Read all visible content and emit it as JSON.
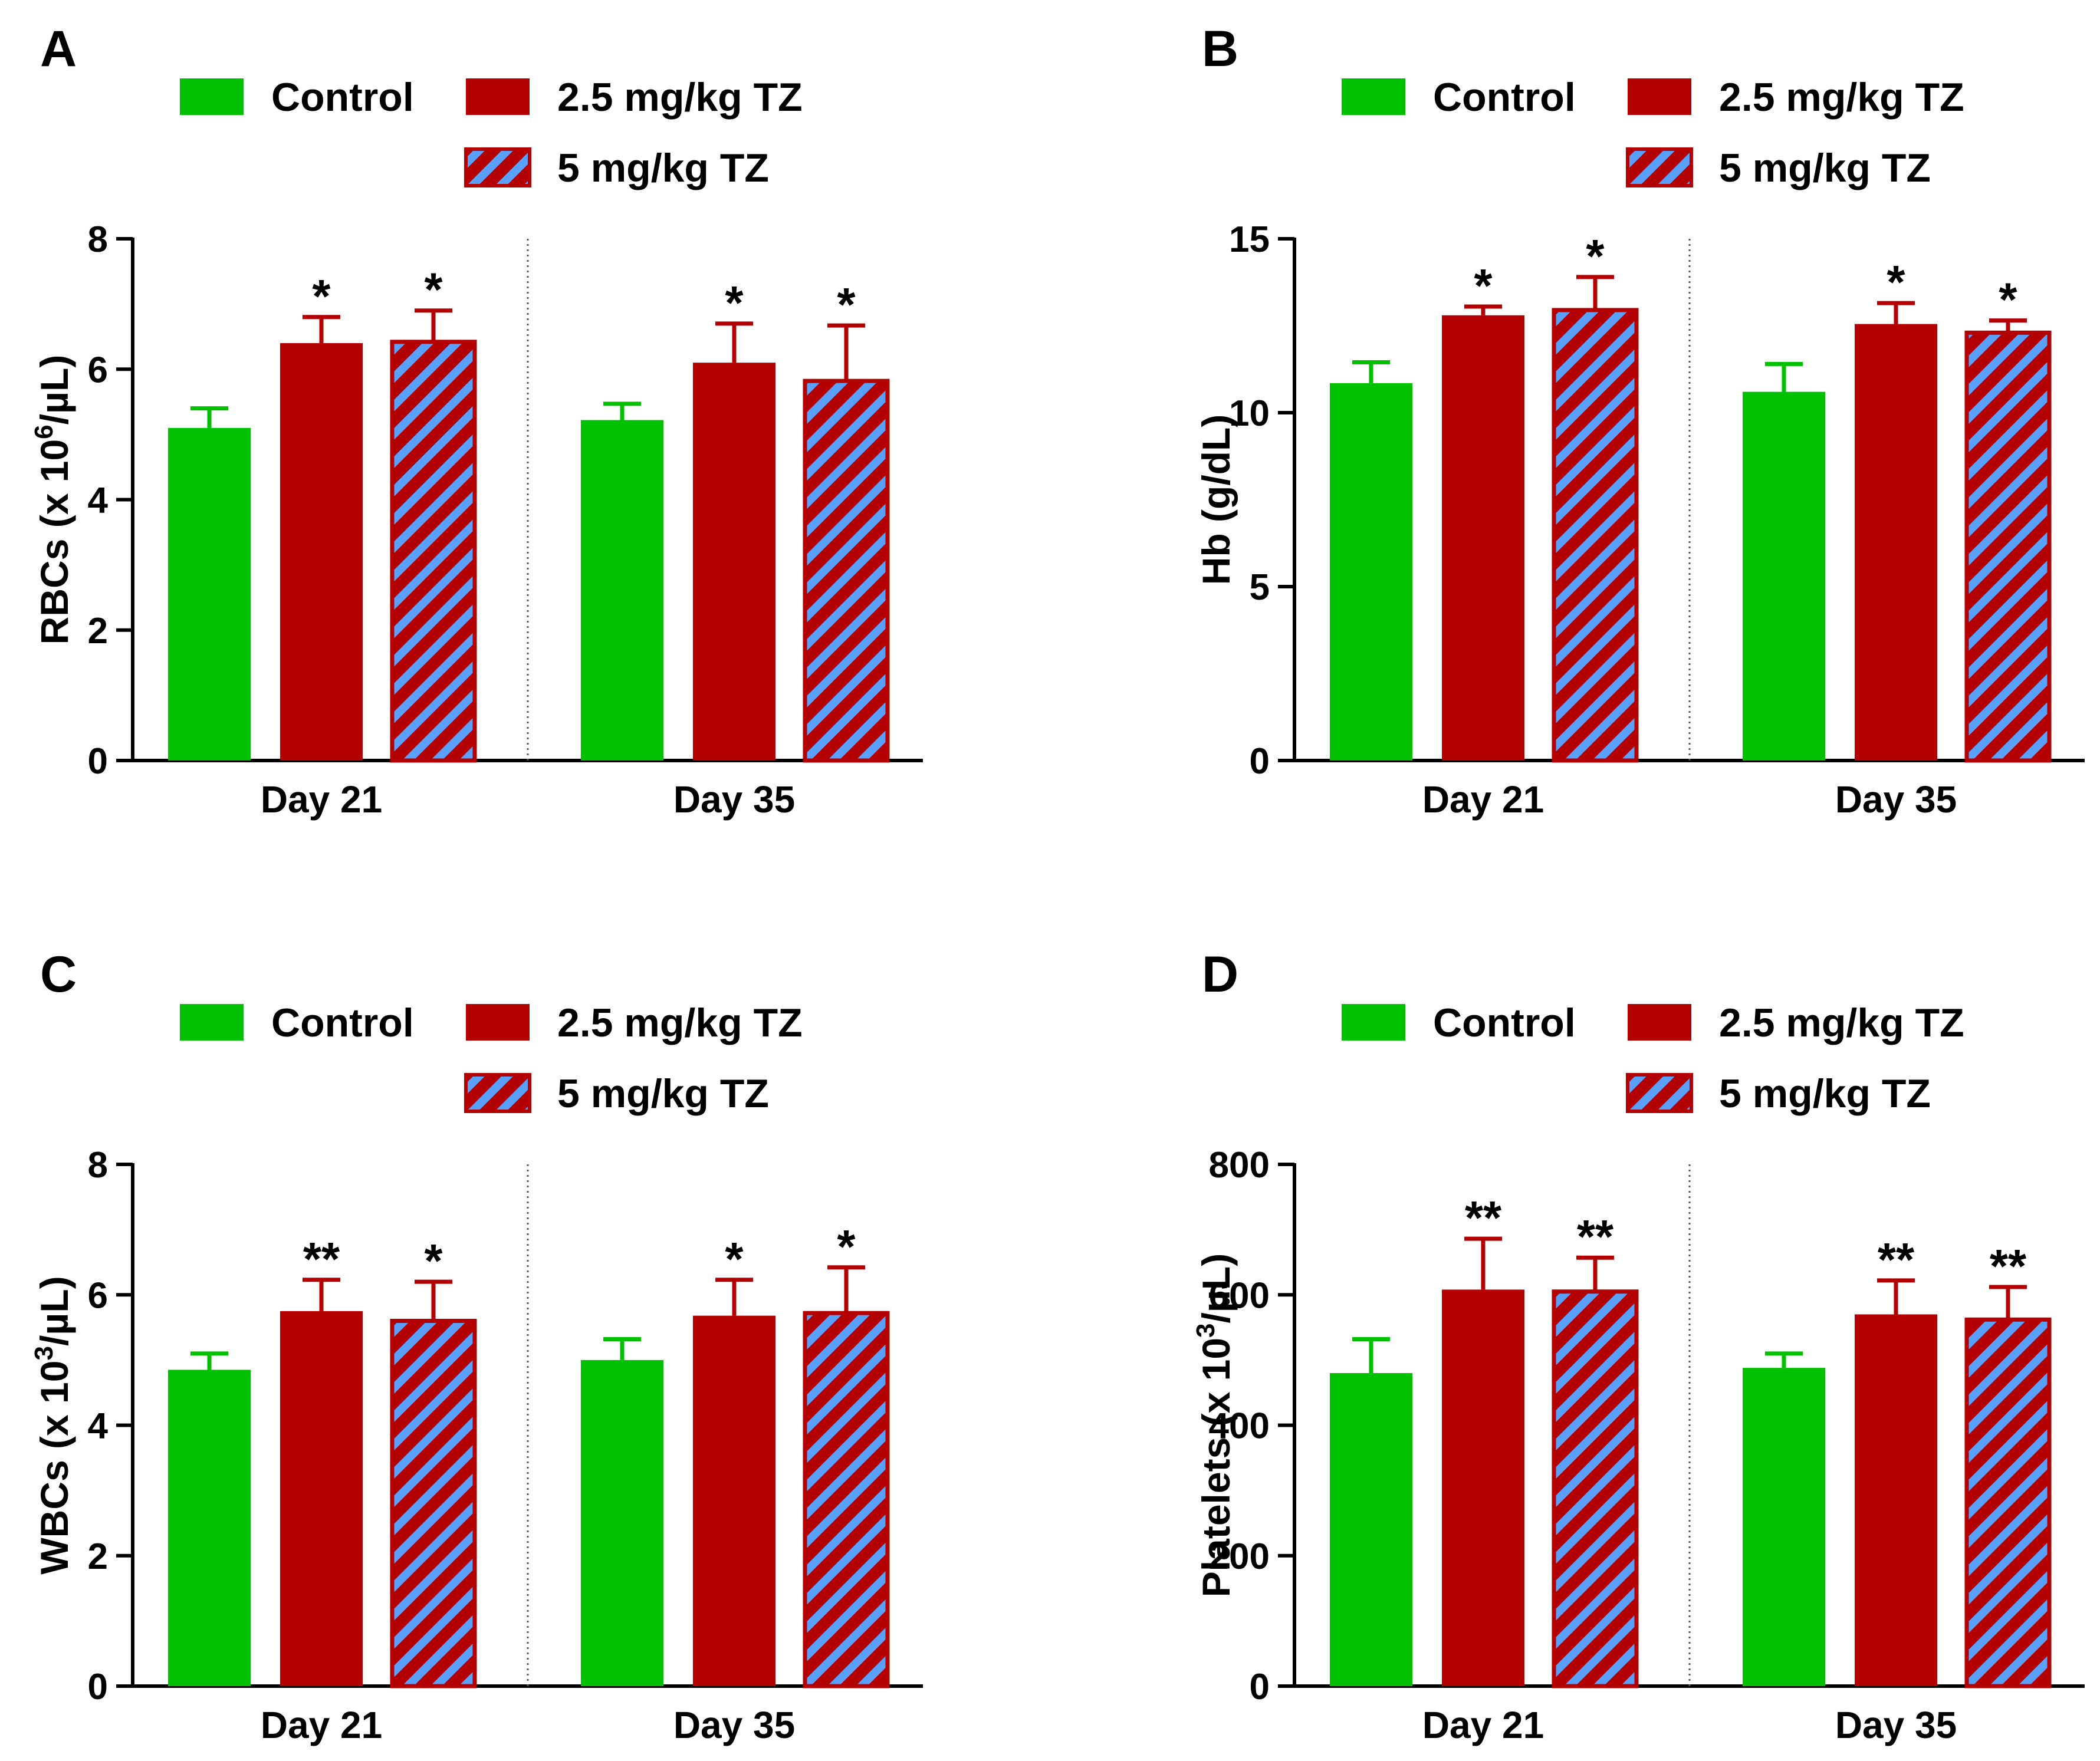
{
  "colors": {
    "control": "#00c000",
    "low_dose": "#b30000",
    "high_dose_fill": "#b30000",
    "high_dose_hatch": "#5aa0ff",
    "axis": "#000000",
    "divider": "#555555"
  },
  "chart_data": [
    {
      "type": "bar",
      "panel": "A",
      "ylabel": "RBCs (x 10^6/µL)",
      "ylabel_parts": {
        "pre": "RBCs (x 10",
        "sup": "6",
        "post": "/µL)"
      },
      "ylim": [
        0,
        8
      ],
      "yticks": [
        0,
        2,
        4,
        6,
        8
      ],
      "categories": [
        "Day 21",
        "Day 35"
      ],
      "legend": [
        "Control",
        "2.5 mg/kg TZ",
        "5 mg/kg TZ"
      ],
      "series": [
        {
          "name": "Control",
          "values": [
            5.1,
            5.22
          ],
          "errors": [
            0.3,
            0.25
          ],
          "sig": [
            "",
            ""
          ]
        },
        {
          "name": "2.5 mg/kg TZ",
          "values": [
            6.4,
            6.1
          ],
          "errors": [
            0.4,
            0.6
          ],
          "sig": [
            "*",
            "*"
          ]
        },
        {
          "name": "5 mg/kg TZ",
          "values": [
            6.42,
            5.82
          ],
          "errors": [
            0.48,
            0.85
          ],
          "sig": [
            "*",
            "*"
          ]
        }
      ]
    },
    {
      "type": "bar",
      "panel": "B",
      "ylabel": "Hb (g/dL)",
      "ylabel_parts": {
        "pre": "Hb (g/dL)",
        "sup": "",
        "post": ""
      },
      "ylim": [
        0,
        15
      ],
      "yticks": [
        0,
        5,
        10,
        15
      ],
      "categories": [
        "Day 21",
        "Day 35"
      ],
      "legend": [
        "Control",
        "2.5 mg/kg TZ",
        "5 mg/kg TZ"
      ],
      "series": [
        {
          "name": "Control",
          "values": [
            10.85,
            10.6
          ],
          "errors": [
            0.6,
            0.8
          ],
          "sig": [
            "",
            ""
          ]
        },
        {
          "name": "2.5 mg/kg TZ",
          "values": [
            12.8,
            12.55
          ],
          "errors": [
            0.25,
            0.6
          ],
          "sig": [
            "*",
            "*"
          ]
        },
        {
          "name": "5 mg/kg TZ",
          "values": [
            12.95,
            12.3
          ],
          "errors": [
            0.95,
            0.35
          ],
          "sig": [
            "*",
            "*"
          ]
        }
      ]
    },
    {
      "type": "bar",
      "panel": "C",
      "ylabel": "WBCs (x 10^3/µL)",
      "ylabel_parts": {
        "pre": "WBCs (x 10",
        "sup": "3",
        "post": "/µL)"
      },
      "ylim": [
        0,
        8
      ],
      "yticks": [
        0,
        2,
        4,
        6,
        8
      ],
      "categories": [
        "Day 21",
        "Day 35"
      ],
      "legend": [
        "Control",
        "2.5 mg/kg TZ",
        "5 mg/kg TZ"
      ],
      "series": [
        {
          "name": "Control",
          "values": [
            4.85,
            5.0
          ],
          "errors": [
            0.25,
            0.32
          ],
          "sig": [
            "",
            ""
          ]
        },
        {
          "name": "2.5 mg/kg TZ",
          "values": [
            5.75,
            5.68
          ],
          "errors": [
            0.48,
            0.55
          ],
          "sig": [
            "**",
            "*"
          ]
        },
        {
          "name": "5 mg/kg TZ",
          "values": [
            5.6,
            5.72
          ],
          "errors": [
            0.6,
            0.7
          ],
          "sig": [
            "*",
            "*"
          ]
        }
      ]
    },
    {
      "type": "bar",
      "panel": "D",
      "ylabel": "Platelets (x 10^3/µL)",
      "ylabel_parts": {
        "pre": "Platelets (x 10",
        "sup": "3",
        "post": "/µL)"
      },
      "ylim": [
        0,
        800
      ],
      "yticks": [
        0,
        200,
        400,
        600,
        800
      ],
      "categories": [
        "Day 21",
        "Day 35"
      ],
      "legend": [
        "Control",
        "2.5 mg/kg TZ",
        "5 mg/kg TZ"
      ],
      "series": [
        {
          "name": "Control",
          "values": [
            480,
            488
          ],
          "errors": [
            52,
            22
          ],
          "sig": [
            "",
            ""
          ]
        },
        {
          "name": "2.5 mg/kg TZ",
          "values": [
            608,
            570
          ],
          "errors": [
            78,
            52
          ],
          "sig": [
            "**",
            "**"
          ]
        },
        {
          "name": "5 mg/kg TZ",
          "values": [
            605,
            562
          ],
          "errors": [
            52,
            50
          ],
          "sig": [
            "**",
            "**"
          ]
        }
      ]
    }
  ]
}
